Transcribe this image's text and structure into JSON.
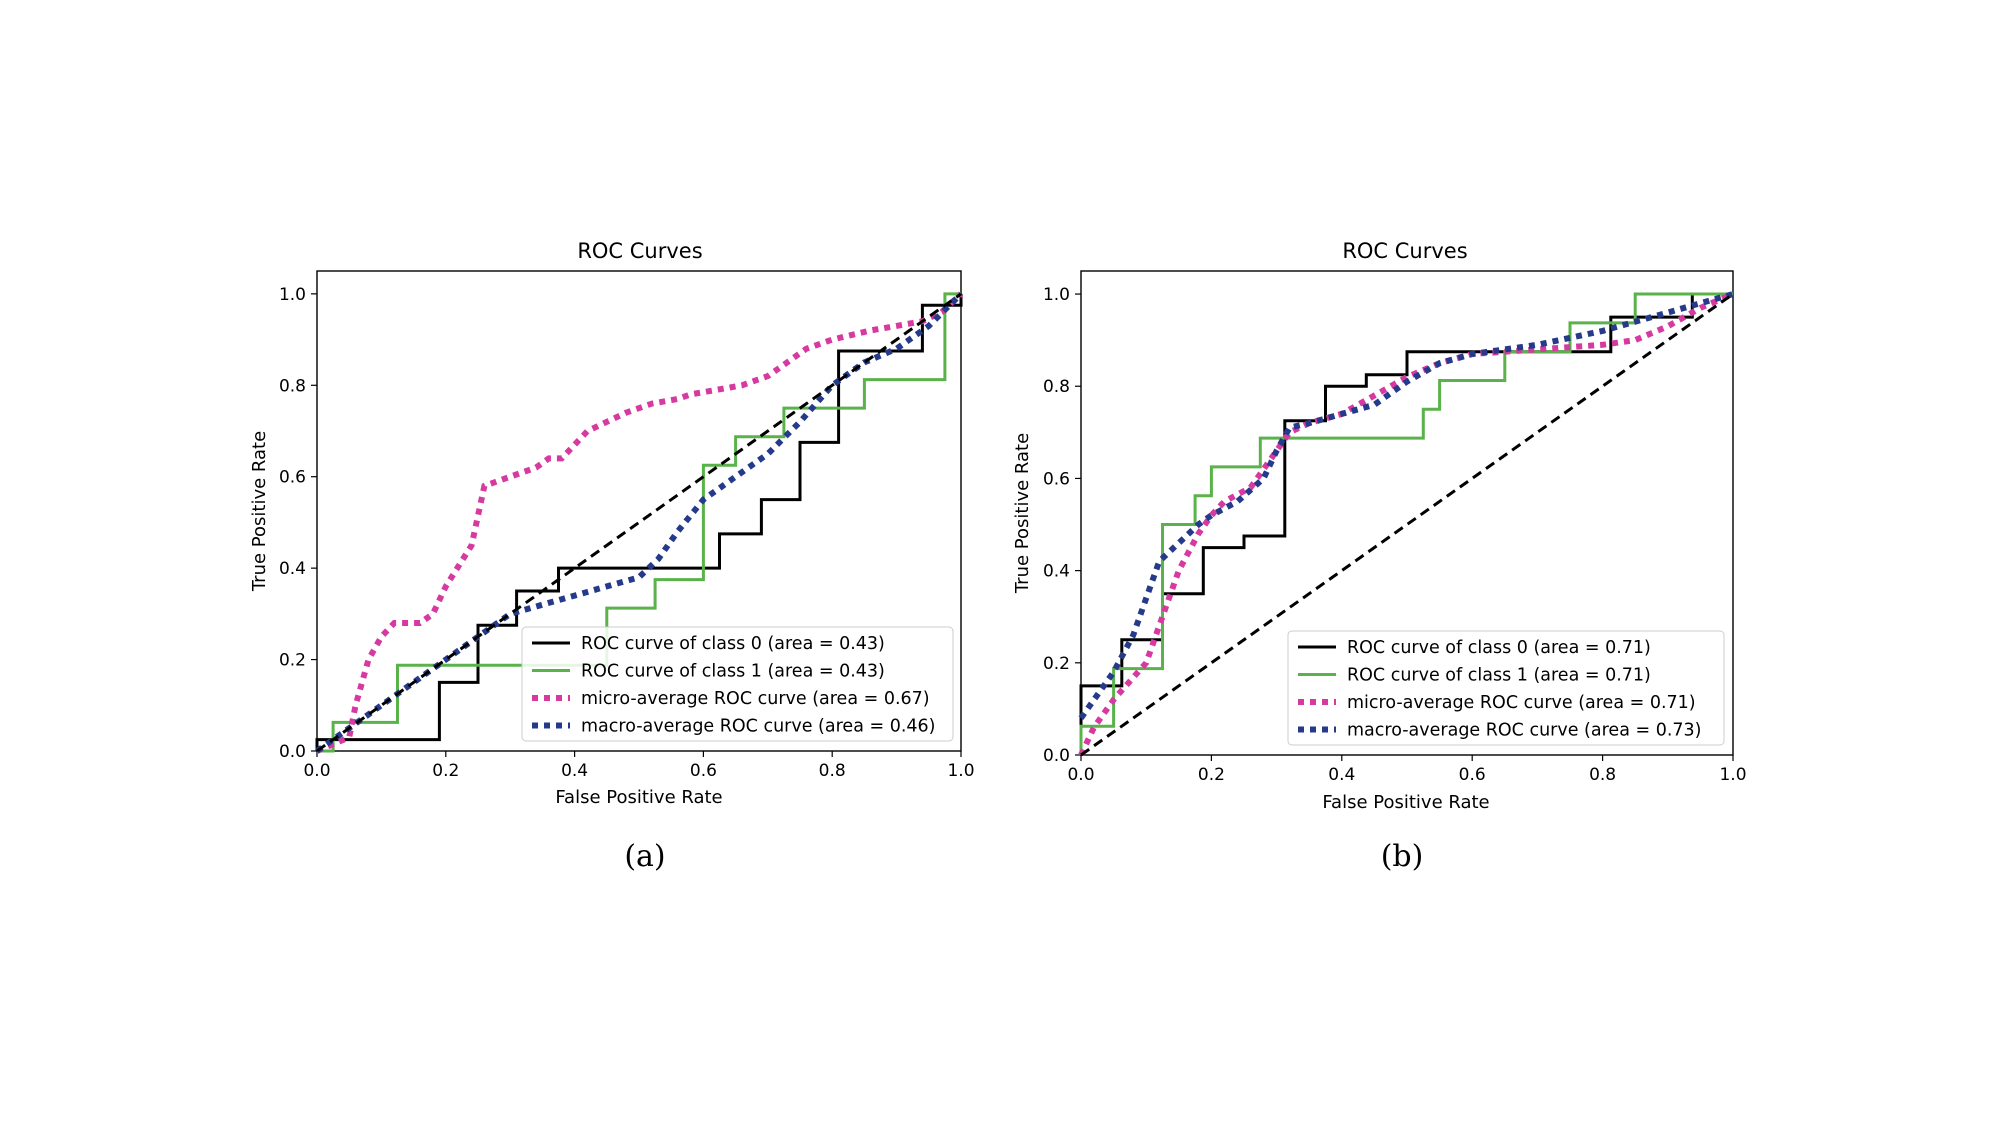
{
  "chart_data": [
    {
      "type": "line",
      "caption": "(a)",
      "title": "ROC Curves",
      "xlabel": "False Positive Rate",
      "ylabel": "True Positive Rate",
      "xlim": [
        0.0,
        1.0
      ],
      "ylim": [
        0.0,
        1.05
      ],
      "xticks": [
        "0.0",
        "0.2",
        "0.4",
        "0.6",
        "0.8",
        "1.0"
      ],
      "yticks": [
        "0.0",
        "0.2",
        "0.4",
        "0.6",
        "0.8",
        "1.0"
      ],
      "legend_position": "lower-right",
      "series": [
        {
          "name": "ROC curve of class 0 (area = 0.43)",
          "style": "solid",
          "color": "#000000",
          "step": true,
          "x": [
            0,
            0,
            0.19,
            0.19,
            0.25,
            0.25,
            0.31,
            0.31,
            0.375,
            0.375,
            0.625,
            0.625,
            0.69,
            0.69,
            0.75,
            0.75,
            0.81,
            0.81,
            0.94,
            0.94,
            1.0,
            1.0
          ],
          "y": [
            0,
            0.025,
            0.025,
            0.15,
            0.15,
            0.275,
            0.275,
            0.35,
            0.35,
            0.4,
            0.4,
            0.475,
            0.475,
            0.55,
            0.55,
            0.675,
            0.675,
            0.875,
            0.875,
            0.975,
            0.975,
            1.0
          ]
        },
        {
          "name": "ROC curve of class 1 (area = 0.43)",
          "style": "solid",
          "color": "#5ab24a",
          "step": true,
          "x": [
            0,
            0.025,
            0.025,
            0.125,
            0.125,
            0.25,
            0.25,
            0.45,
            0.45,
            0.525,
            0.525,
            0.6,
            0.6,
            0.65,
            0.65,
            0.725,
            0.725,
            0.85,
            0.85,
            0.975,
            0.975,
            1.0
          ],
          "y": [
            0,
            0,
            0.0625,
            0.0625,
            0.1875,
            0.1875,
            0.1875,
            0.1875,
            0.3125,
            0.3125,
            0.375,
            0.375,
            0.625,
            0.625,
            0.6875,
            0.6875,
            0.75,
            0.75,
            0.8125,
            0.8125,
            1.0,
            1.0
          ]
        },
        {
          "name": "micro-average ROC curve (area = 0.67)",
          "style": "dotted",
          "color": "#d63aa0",
          "x": [
            0.0,
            0.05,
            0.06,
            0.08,
            0.1,
            0.12,
            0.16,
            0.18,
            0.2,
            0.24,
            0.26,
            0.3,
            0.34,
            0.36,
            0.38,
            0.42,
            0.48,
            0.52,
            0.56,
            0.58,
            0.62,
            0.66,
            0.7,
            0.72,
            0.76,
            0.8,
            0.86,
            0.9,
            0.94,
            0.97,
            1.0
          ],
          "y": [
            0.0,
            0.03,
            0.1,
            0.2,
            0.25,
            0.28,
            0.28,
            0.3,
            0.36,
            0.45,
            0.58,
            0.6,
            0.62,
            0.64,
            0.64,
            0.7,
            0.74,
            0.76,
            0.77,
            0.78,
            0.79,
            0.8,
            0.82,
            0.84,
            0.88,
            0.9,
            0.92,
            0.93,
            0.94,
            0.96,
            1.0
          ]
        },
        {
          "name": "macro-average ROC curve (area = 0.46)",
          "style": "dotted",
          "color": "#253a8a",
          "x": [
            0.0,
            0.05,
            0.1,
            0.15,
            0.2,
            0.25,
            0.3,
            0.35,
            0.4,
            0.45,
            0.5,
            0.53,
            0.56,
            0.6,
            0.65,
            0.7,
            0.75,
            0.8,
            0.85,
            0.9,
            0.95,
            1.0
          ],
          "y": [
            0.0,
            0.05,
            0.1,
            0.15,
            0.2,
            0.25,
            0.3,
            0.32,
            0.34,
            0.36,
            0.38,
            0.42,
            0.48,
            0.55,
            0.6,
            0.65,
            0.72,
            0.8,
            0.85,
            0.88,
            0.93,
            1.0
          ]
        },
        {
          "name": "chance",
          "style": "dashed",
          "color": "#000000",
          "legend": false,
          "x": [
            0,
            1
          ],
          "y": [
            0,
            1
          ]
        }
      ]
    },
    {
      "type": "line",
      "caption": "(b)",
      "title": "ROC Curves",
      "xlabel": "False Positive Rate",
      "ylabel": "True Positive Rate",
      "xlim": [
        0.0,
        1.0
      ],
      "ylim": [
        0.0,
        1.05
      ],
      "xticks": [
        "0.0",
        "0.2",
        "0.4",
        "0.6",
        "0.8",
        "1.0"
      ],
      "yticks": [
        "0.0",
        "0.2",
        "0.4",
        "0.6",
        "0.8",
        "1.0"
      ],
      "legend_position": "lower-right",
      "series": [
        {
          "name": "ROC curve of class 0 (area = 0.71)",
          "style": "solid",
          "color": "#000000",
          "step": true,
          "x": [
            0,
            0,
            0.0625,
            0.0625,
            0.125,
            0.125,
            0.1875,
            0.1875,
            0.25,
            0.25,
            0.3125,
            0.3125,
            0.375,
            0.375,
            0.4375,
            0.4375,
            0.5,
            0.5,
            0.8125,
            0.8125,
            0.9375,
            0.9375,
            1.0
          ],
          "y": [
            0,
            0.15,
            0.15,
            0.25,
            0.25,
            0.35,
            0.35,
            0.45,
            0.45,
            0.475,
            0.475,
            0.725,
            0.725,
            0.8,
            0.8,
            0.825,
            0.825,
            0.875,
            0.875,
            0.95,
            0.95,
            1.0,
            1.0
          ]
        },
        {
          "name": "ROC curve of class 1 (area = 0.71)",
          "style": "solid",
          "color": "#5ab24a",
          "step": true,
          "x": [
            0,
            0,
            0.05,
            0.05,
            0.125,
            0.125,
            0.175,
            0.175,
            0.2,
            0.2,
            0.275,
            0.275,
            0.525,
            0.525,
            0.55,
            0.55,
            0.65,
            0.65,
            0.75,
            0.75,
            0.85,
            0.85,
            1.0
          ],
          "y": [
            0,
            0.0625,
            0.0625,
            0.1875,
            0.1875,
            0.5,
            0.5,
            0.5625,
            0.5625,
            0.625,
            0.625,
            0.6875,
            0.6875,
            0.75,
            0.75,
            0.8125,
            0.8125,
            0.875,
            0.875,
            0.9375,
            0.9375,
            1.0,
            1.0
          ]
        },
        {
          "name": "micro-average ROC curve (area = 0.71)",
          "style": "dotted",
          "color": "#d63aa0",
          "x": [
            0.0,
            0.02,
            0.05,
            0.1,
            0.12,
            0.15,
            0.18,
            0.2,
            0.22,
            0.26,
            0.28,
            0.3,
            0.32,
            0.35,
            0.4,
            0.45,
            0.5,
            0.55,
            0.6,
            0.7,
            0.8,
            0.85,
            0.9,
            0.95,
            1.0
          ],
          "y": [
            0.0,
            0.06,
            0.12,
            0.2,
            0.28,
            0.4,
            0.48,
            0.52,
            0.55,
            0.58,
            0.62,
            0.66,
            0.7,
            0.72,
            0.74,
            0.78,
            0.82,
            0.85,
            0.87,
            0.88,
            0.89,
            0.9,
            0.93,
            0.97,
            1.0
          ]
        },
        {
          "name": "macro-average ROC curve (area = 0.73)",
          "style": "dotted",
          "color": "#253a8a",
          "x": [
            0.0,
            0.02,
            0.05,
            0.08,
            0.1,
            0.12,
            0.15,
            0.18,
            0.2,
            0.24,
            0.28,
            0.3,
            0.32,
            0.35,
            0.4,
            0.45,
            0.5,
            0.55,
            0.6,
            0.7,
            0.8,
            0.9,
            1.0
          ],
          "y": [
            0.08,
            0.12,
            0.18,
            0.26,
            0.34,
            0.42,
            0.46,
            0.5,
            0.52,
            0.55,
            0.6,
            0.66,
            0.71,
            0.72,
            0.74,
            0.76,
            0.81,
            0.85,
            0.87,
            0.89,
            0.92,
            0.96,
            1.0
          ]
        },
        {
          "name": "chance",
          "style": "dashed",
          "color": "#000000",
          "legend": false,
          "x": [
            0,
            1
          ],
          "y": [
            0,
            1
          ]
        }
      ]
    }
  ]
}
